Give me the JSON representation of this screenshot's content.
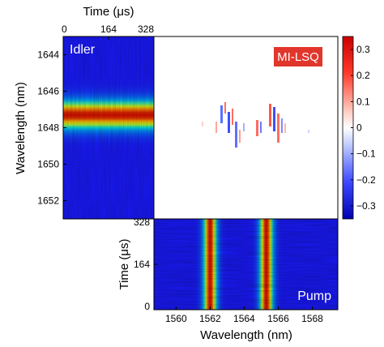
{
  "chart_data": [
    {
      "type": "heatmap",
      "panel": "idler",
      "label": "Idler",
      "xlabel": "Time (μs)",
      "ylabel": "Wavelength (nm)",
      "xlim": [
        0,
        328
      ],
      "ylim": [
        1643,
        1653
      ],
      "x_ticks": [
        0,
        164,
        328
      ],
      "y_ticks": [
        1644,
        1646,
        1648,
        1650,
        1652
      ],
      "peak_wavelength": 1647.3,
      "colormap": "jet"
    },
    {
      "type": "heatmap",
      "panel": "mi-lsq",
      "label": "MI-LSQ",
      "clim": [
        -0.35,
        0.35
      ],
      "colorbar_ticks": [
        "0.3",
        "0.2",
        "0.1",
        "0",
        "−0.1",
        "−0.2",
        "−0.3"
      ],
      "colormap": "blue-white-red"
    },
    {
      "type": "heatmap",
      "panel": "pump",
      "label": "Pump",
      "xlabel": "Wavelength (nm)",
      "ylabel": "Time (μs)",
      "xlim": [
        1558.7,
        1569.5
      ],
      "ylim": [
        0,
        328
      ],
      "x_ticks": [
        1560,
        1562,
        1564,
        1566,
        1568
      ],
      "y_ticks": [
        0,
        164,
        328
      ],
      "peak_wavelengths": [
        1562.0,
        1565.3
      ],
      "colormap": "jet"
    }
  ],
  "colors": {
    "colormap_low": "#1a1aff",
    "badge_background": "#e1362c"
  }
}
